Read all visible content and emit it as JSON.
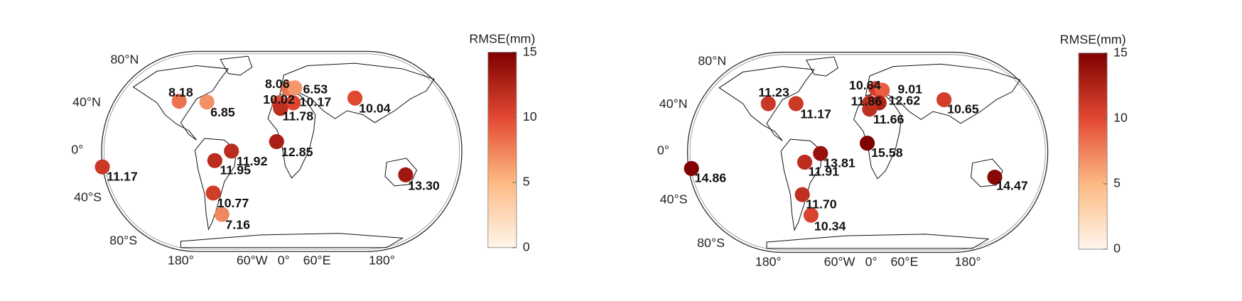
{
  "maps": [
    {
      "colorbar": {
        "title": "RMSE(mm)",
        "range": [
          0,
          15
        ],
        "ticks": [
          0,
          5,
          10,
          15
        ]
      },
      "lat_labels": [
        "80°N",
        "40°N",
        "0°",
        "40°S",
        "80°S"
      ],
      "lon_labels": [
        "180°",
        "60°W",
        "0°",
        "60°E",
        "180°"
      ],
      "values": [
        8.18,
        6.85,
        8.06,
        6.53,
        10.02,
        10.17,
        11.78,
        10.04,
        12.85,
        11.92,
        11.95,
        11.17,
        13.3,
        10.77,
        7.16
      ],
      "value_labels": [
        "8.18",
        "6.85",
        "8.06",
        "6.53",
        "10.02",
        "10.17",
        "11.78",
        "10.04",
        "12.85",
        "11.92",
        "11.95",
        "11.17",
        "13.30",
        "10.77",
        "7.16"
      ]
    },
    {
      "colorbar": {
        "title": "RMSE(mm)",
        "range": [
          0,
          15
        ],
        "ticks": [
          0,
          5,
          10,
          15
        ]
      },
      "lat_labels": [
        "80°N",
        "40°N",
        "0°",
        "40°S",
        "80°S"
      ],
      "lon_labels": [
        "180°",
        "60°W",
        "0°",
        "60°E",
        "180°"
      ],
      "values": [
        11.23,
        11.17,
        10.64,
        9.01,
        11.86,
        12.62,
        11.66,
        10.65,
        15.58,
        13.81,
        11.91,
        14.86,
        14.47,
        11.7,
        10.34
      ],
      "value_labels": [
        "11.23",
        "11.17",
        "10.64",
        "9.01",
        "11.86",
        "12.62",
        "11.66",
        "10.65",
        "15.58",
        "13.81",
        "11.91",
        "14.86",
        "14.47",
        "11.70",
        "10.34"
      ]
    }
  ]
}
